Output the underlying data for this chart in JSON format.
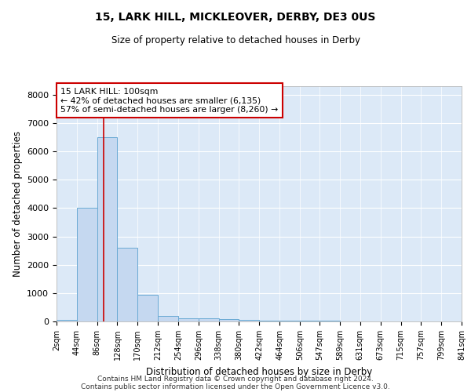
{
  "title_line1": "15, LARK HILL, MICKLEOVER, DERBY, DE3 0US",
  "title_line2": "Size of property relative to detached houses in Derby",
  "xlabel": "Distribution of detached houses by size in Derby",
  "ylabel": "Number of detached properties",
  "bin_edges": [
    2,
    44,
    86,
    128,
    170,
    212,
    254,
    296,
    338,
    380,
    422,
    464,
    506,
    547,
    589,
    631,
    673,
    715,
    757,
    799,
    841
  ],
  "bar_heights": [
    50,
    4000,
    6500,
    2600,
    950,
    190,
    120,
    100,
    70,
    50,
    40,
    30,
    20,
    15,
    10,
    8,
    5,
    4,
    3,
    2
  ],
  "bar_color": "#c5d8f0",
  "bar_edge_color": "#6aaad4",
  "property_size": 100,
  "annotation_title": "15 LARK HILL: 100sqm",
  "annotation_line1": "← 42% of detached houses are smaller (6,135)",
  "annotation_line2": "57% of semi-detached houses are larger (8,260) →",
  "annotation_box_color": "#ffffff",
  "annotation_box_edge_color": "#cc0000",
  "vline_color": "#cc0000",
  "ylim": [
    0,
    8300
  ],
  "yticks": [
    0,
    1000,
    2000,
    3000,
    4000,
    5000,
    6000,
    7000,
    8000
  ],
  "footnote1": "Contains HM Land Registry data © Crown copyright and database right 2024.",
  "footnote2": "Contains public sector information licensed under the Open Government Licence v3.0.",
  "plot_background_color": "#dce9f7"
}
